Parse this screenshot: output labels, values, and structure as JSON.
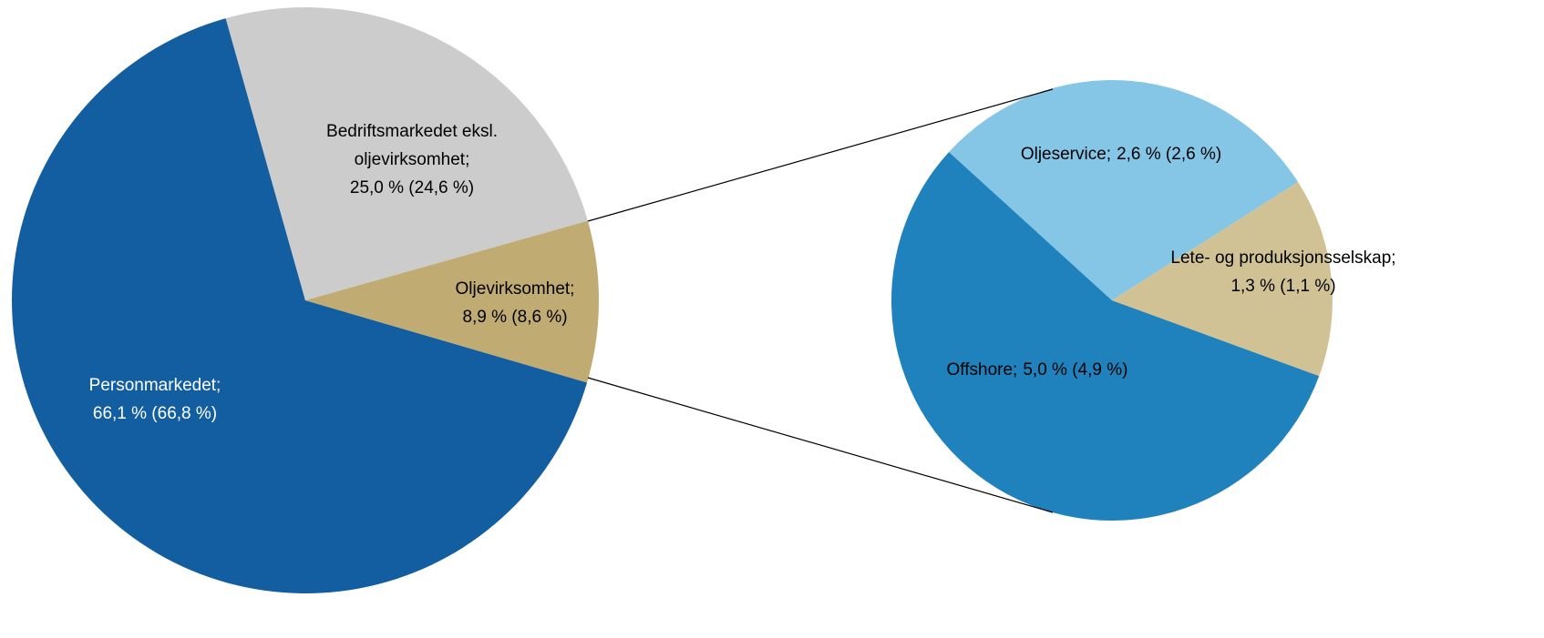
{
  "chart_data": [
    {
      "type": "pie",
      "categories": [
        "Personmarkedet;",
        "Bedriftsmarkedet eksl. oljevirksomhet;",
        "Oljevirksomhet;"
      ],
      "values": [
        66.1,
        25.0,
        8.9
      ],
      "value_labels": [
        "66,1 % (66,8 %)",
        "25,0 % (24,6 %)",
        "8,9 % (8,6 %)"
      ],
      "colors": [
        "#135ea0",
        "#cccccc",
        "#c0ab72"
      ]
    },
    {
      "type": "pie",
      "categories": [
        "Offshore;",
        "Oljeservice;",
        "Lete- og produksjonsselskap;"
      ],
      "values": [
        5.0,
        2.6,
        1.3
      ],
      "value_labels": [
        "5,0 % (4,9 %)",
        "2,6 % (2,6 %)",
        "1,3 % (1,1 %)"
      ],
      "colors": [
        "#1f82bc",
        "#85c5e5",
        "#d0c295"
      ]
    }
  ]
}
